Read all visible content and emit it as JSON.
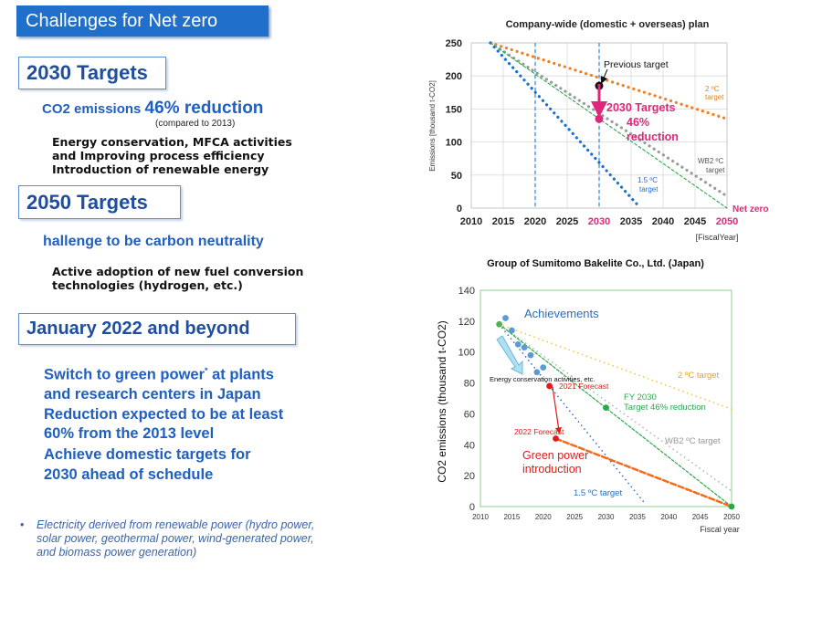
{
  "slide": {
    "title": "Challenges for Net zero",
    "t2030": {
      "heading": "2030 Targets",
      "line1_prefix": "CO2 emissions ",
      "line1_value": "46% reduction",
      "line2": "(compared to 2013)",
      "bullets": [
        "Energy conservation, MFCA activities",
        "and Improving process efficiency",
        "Introduction of renewable energy"
      ]
    },
    "t2050": {
      "heading": "2050 Targets",
      "line1": "hallenge to be carbon neutrality",
      "bullets": [
        "Active adoption of new fuel conversion",
        "technologies (hydrogen, etc.)"
      ]
    },
    "t2022": {
      "heading": "January 2022 and beyond",
      "para1_line1": "Switch to green power",
      "para1_mark": "*",
      "para1_line1_end": " at plants",
      "para1_rest": [
        "and research centers in Japan",
        "Reduction expected to be at least",
        "60% from the 2013 level"
      ],
      "para2": [
        "Achieve domestic targets for",
        "2030 ahead of schedule"
      ]
    },
    "footnote": {
      "bullet": "•",
      "lines": [
        "Electricity derived from renewable power (hydro power,",
        "solar power, geothermal power,  wind-generated power,",
        "and biomass power generation)"
      ]
    }
  },
  "chart_data": [
    {
      "type": "line",
      "title": "Company-wide (domestic + overseas) plan",
      "xlabel": "[FiscalYear]",
      "ylabel": "Emissions [thousand  t-CO2]",
      "xlim": [
        2010,
        2050
      ],
      "ylim": [
        0,
        250
      ],
      "xticks": [
        2010,
        2015,
        2020,
        2025,
        2030,
        2035,
        2040,
        2045,
        2050
      ],
      "yticks": [
        0,
        50,
        100,
        150,
        200,
        250
      ],
      "grid": true,
      "series": [
        {
          "name": "2 ºC target",
          "style": "dotted",
          "color": "#f07f1e",
          "x": [
            2013,
            2050
          ],
          "y": [
            250,
            135
          ]
        },
        {
          "name": "WB2 ºC target",
          "style": "dotted",
          "color": "#9a9a9a",
          "x": [
            2013,
            2050
          ],
          "y": [
            250,
            18
          ]
        },
        {
          "name": "1.5 ºC target",
          "style": "dotted",
          "color": "#1a6fd1",
          "x": [
            2013,
            2036
          ],
          "y": [
            250,
            5
          ]
        },
        {
          "style": "dashed",
          "color": "#2aa84a",
          "x": [
            2013,
            2050
          ],
          "y": [
            250,
            0
          ]
        }
      ],
      "points": [
        {
          "x": 2030,
          "y": 185,
          "color": "#111111"
        },
        {
          "x": 2030,
          "y": 135,
          "color": "#e0267a"
        }
      ],
      "vlines": [
        2020,
        2030
      ],
      "annotations": {
        "previous_target": "Previous target",
        "targets_line1": "2030 Targets",
        "targets_line2": "46%",
        "targets_line3": "reduction",
        "two_c_line1": "2 ºC",
        "two_c_line2": "target",
        "wb2_line1": "WB2 ºC",
        "wb2_line2": "target",
        "onefive_line1": "1.5 ºC",
        "onefive_line2": "target",
        "net_zero": "Net zero",
        "tick_2030": "2030",
        "tick_2050": "2050"
      },
      "colors": {
        "highlight": "#e0267a"
      }
    },
    {
      "type": "line",
      "title": "Group of Sumitomo Bakelite Co., Ltd. (Japan)",
      "xlabel": "Fiscal year",
      "ylabel": "CO2 emissions (thousand t-CO2)",
      "xlim": [
        2010,
        2050
      ],
      "ylim": [
        0,
        140
      ],
      "xticks": [
        2010,
        2015,
        2020,
        2025,
        2030,
        2035,
        2040,
        2045,
        2050
      ],
      "yticks": [
        0,
        20,
        40,
        60,
        80,
        100,
        120,
        140
      ],
      "series": [
        {
          "name": "2 ºC target",
          "style": "dotted",
          "color": "#f2c23a",
          "x": [
            2013,
            2050
          ],
          "y": [
            118,
            63
          ]
        },
        {
          "name": "WB2 ºC target",
          "style": "dotted",
          "color": "#b0b0b0",
          "x": [
            2013,
            2050
          ],
          "y": [
            118,
            10
          ]
        },
        {
          "name": "1.5 ºC target",
          "style": "dotted",
          "color": "#2b6dbf",
          "x": [
            2013,
            2036
          ],
          "y": [
            118,
            3
          ]
        },
        {
          "name": "FY 2030 Target 46% reduction",
          "style": "dashed",
          "color": "#2aa84a",
          "x": [
            2013,
            2050
          ],
          "y": [
            118,
            0
          ]
        },
        {
          "name": "Green power introduction",
          "style": "dashed",
          "color": "#f26a1b",
          "x": [
            2022,
            2050
          ],
          "y": [
            44,
            0
          ]
        }
      ],
      "achievements": {
        "x": [
          2014,
          2015,
          2016,
          2017,
          2018,
          2019,
          2020
        ],
        "y": [
          122,
          114,
          105,
          103,
          98,
          87,
          90
        ]
      },
      "points": [
        {
          "label": "2021 Forecast",
          "x": 2021,
          "y": 78,
          "color": "#e31a1a"
        },
        {
          "label": "2022 Forecast",
          "x": 2022,
          "y": 44,
          "color": "#e31a1a"
        },
        {
          "x": 2030,
          "y": 64,
          "color": "#2aa84a"
        },
        {
          "x": 2013,
          "y": 118,
          "color": "#52b152"
        },
        {
          "x": 2050,
          "y": 0,
          "color": "#2aa84a"
        }
      ],
      "annotations": {
        "achievements": "Achievements",
        "energy_conservation": "Energy conservation activities, etc.",
        "forecast_2021": "2021 Forecast",
        "forecast_2022": "2022 Forecast",
        "fy2030_line1": "FY 2030",
        "fy2030_line2": "Target 46% reduction",
        "two_c": "2 ºC target",
        "wb2": "WB2 ºC target",
        "green_line1": "Green power",
        "green_line2": "introduction",
        "onefive": "1.5 ºC target"
      }
    }
  ]
}
